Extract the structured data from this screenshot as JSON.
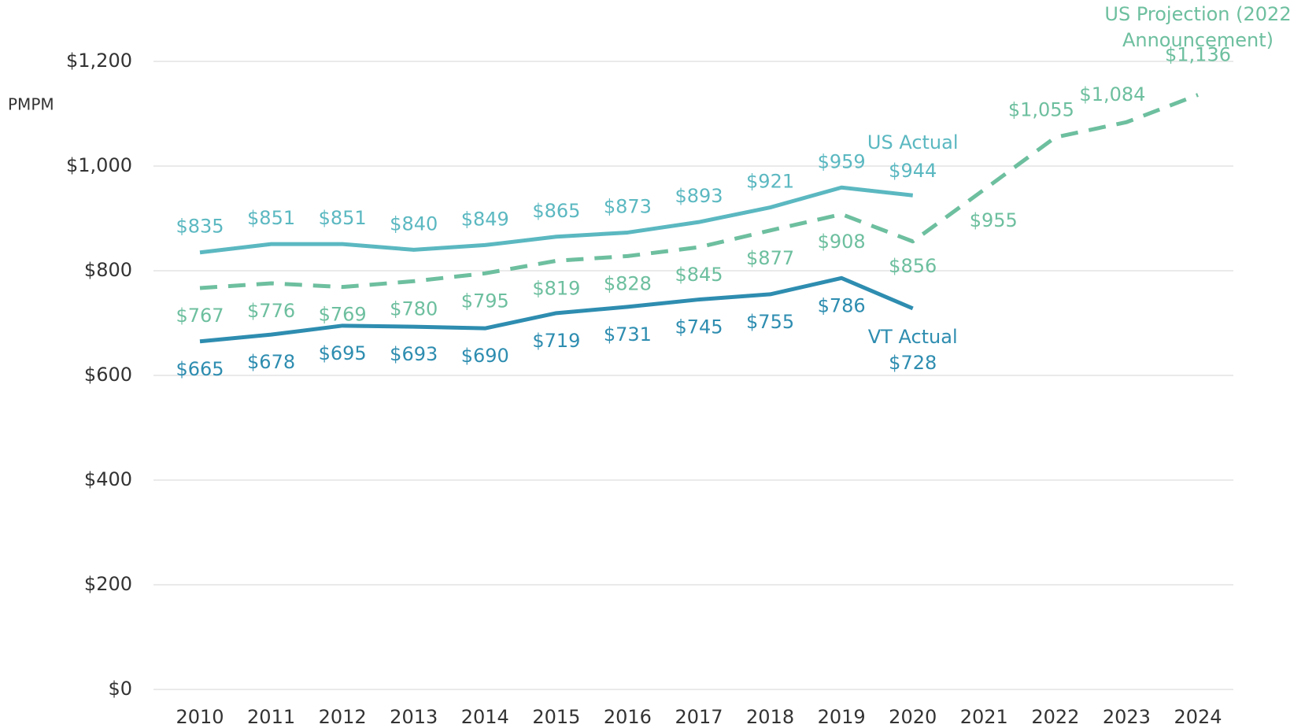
{
  "chart_data": {
    "type": "line",
    "y_label": "PMPM",
    "categories": [
      "2010",
      "2011",
      "2012",
      "2013",
      "2014",
      "2015",
      "2016",
      "2017",
      "2018",
      "2019",
      "2020",
      "2021",
      "2022",
      "2023",
      "2024"
    ],
    "ylim": [
      0,
      1200
    ],
    "yticks": [
      {
        "value": 0,
        "label": "$0"
      },
      {
        "value": 200,
        "label": "$200"
      },
      {
        "value": 400,
        "label": "$400"
      },
      {
        "value": 600,
        "label": "$600"
      },
      {
        "value": 800,
        "label": "$800"
      },
      {
        "value": 1000,
        "label": "$1,000"
      },
      {
        "value": 1200,
        "label": "$1,200"
      }
    ],
    "grid": true,
    "series": [
      {
        "name": "US Actual",
        "color": "#5bb8c1",
        "dashed": false,
        "values": [
          835,
          851,
          851,
          840,
          849,
          865,
          873,
          893,
          921,
          959,
          944,
          null,
          null,
          null,
          null
        ],
        "value_labels": [
          "$835",
          "$851",
          "$851",
          "$840",
          "$849",
          "$865",
          "$873",
          "$893",
          "$921",
          "$959",
          "$944",
          null,
          null,
          null,
          null
        ]
      },
      {
        "name": "VT Actual",
        "color": "#2e8db0",
        "dashed": false,
        "values": [
          665,
          678,
          695,
          693,
          690,
          719,
          731,
          745,
          755,
          786,
          728,
          null,
          null,
          null,
          null
        ],
        "value_labels": [
          "$665",
          "$678",
          "$695",
          "$693",
          "$690",
          "$719",
          "$731",
          "$745",
          "$755",
          "$786",
          "$728",
          null,
          null,
          null,
          null
        ]
      },
      {
        "name": "US Projection (2022 Announcement)",
        "color": "#6dbf9f",
        "dashed": true,
        "values": [
          767,
          776,
          769,
          780,
          795,
          819,
          828,
          845,
          877,
          908,
          856,
          955,
          1055,
          1084,
          1136
        ],
        "value_labels": [
          "$767",
          "$776",
          "$769",
          "$780",
          "$795",
          "$819",
          "$828",
          "$845",
          "$877",
          "$908",
          "$856",
          "$955",
          "$1,055",
          "$1,084",
          "$1,136"
        ]
      }
    ]
  }
}
